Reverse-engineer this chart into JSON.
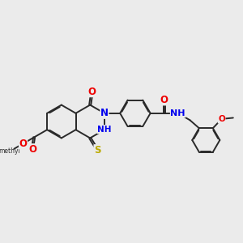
{
  "bg_color": "#ebebeb",
  "bond_color": "#2a2a2a",
  "bond_width": 1.4,
  "atom_colors": {
    "N": "#0000ee",
    "O": "#ee0000",
    "S": "#bbaa00",
    "C": "#2a2a2a"
  },
  "font_size": 7.5,
  "fig_w": 3.0,
  "fig_h": 3.0,
  "xlim": [
    0,
    10
  ],
  "ylim": [
    0,
    10
  ]
}
